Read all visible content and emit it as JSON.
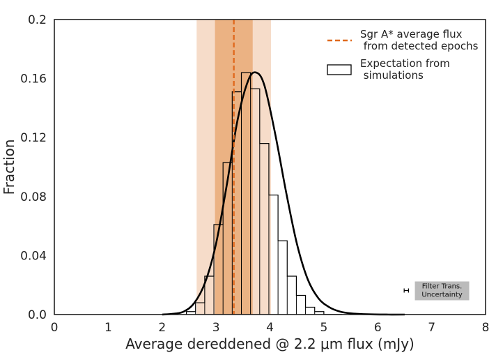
{
  "chart_data": {
    "type": "histogram",
    "title": "",
    "xlabel": "Average dereddened @ 2.2 μm flux (mJy)",
    "ylabel": "Fraction",
    "xlim": [
      0,
      8
    ],
    "ylim": [
      0,
      0.2
    ],
    "xticks": [
      0,
      1,
      2,
      3,
      4,
      5,
      6,
      7,
      8
    ],
    "xtick_labels": [
      "0",
      "1",
      "2",
      "3",
      "4",
      "5",
      "6",
      "7",
      "8"
    ],
    "yticks": [
      0,
      0.04,
      0.08,
      0.12,
      0.16,
      0.2
    ],
    "ytick_labels": [
      "0.0",
      "0.04",
      "0.08",
      "0.12",
      "0.16",
      "0.2"
    ],
    "grid": false,
    "histogram": {
      "name": "Expectation from\n simulations",
      "bin_edges": [
        2.45,
        2.62,
        2.79,
        2.96,
        3.13,
        3.3,
        3.47,
        3.64,
        3.81,
        3.98,
        4.15,
        4.32,
        4.49,
        4.66,
        4.83,
        5.0,
        5.17,
        5.34
      ],
      "values": [
        0.002,
        0.008,
        0.026,
        0.061,
        0.103,
        0.151,
        0.164,
        0.153,
        0.116,
        0.081,
        0.05,
        0.026,
        0.013,
        0.005,
        0.002,
        0.0,
        0.0
      ]
    },
    "fit_curve": {
      "name": "fit",
      "x": [
        2.0,
        2.2,
        2.4,
        2.6,
        2.8,
        3.0,
        3.2,
        3.4,
        3.6,
        3.75,
        3.9,
        4.1,
        4.3,
        4.5,
        4.7,
        4.9,
        5.1,
        5.3,
        5.5,
        5.8,
        6.2,
        6.5
      ],
      "y": [
        0.0,
        0.0005,
        0.002,
        0.008,
        0.022,
        0.048,
        0.088,
        0.132,
        0.159,
        0.164,
        0.155,
        0.122,
        0.083,
        0.048,
        0.024,
        0.011,
        0.005,
        0.002,
        0.0008,
        0.0002,
        0.0,
        0.0
      ]
    },
    "vline": {
      "name": "Sgr A* average flux\n from detected epochs",
      "x": 3.33,
      "color": "#e06a1e"
    },
    "bands": [
      {
        "x0": 2.64,
        "x1": 4.02,
        "color": "#f6dcc9"
      },
      {
        "x0": 2.98,
        "x1": 3.68,
        "color": "#ebb283"
      }
    ],
    "annotation": {
      "text": "Filter Trans.\nUncertainty",
      "x_center": 7.18,
      "y_center": 0.0163,
      "errorbar_x": 6.53,
      "errorbar_halfwidth": 0.04,
      "bg_color": "#bbbbbb"
    },
    "legend_position": "upper-right",
    "legend": [
      {
        "label": "Sgr A* average flux\n from detected epochs",
        "style": "dashed-line",
        "color": "#e06a1e"
      },
      {
        "label": "Expectation from\n simulations",
        "style": "open-box",
        "color": "#000000"
      }
    ]
  }
}
